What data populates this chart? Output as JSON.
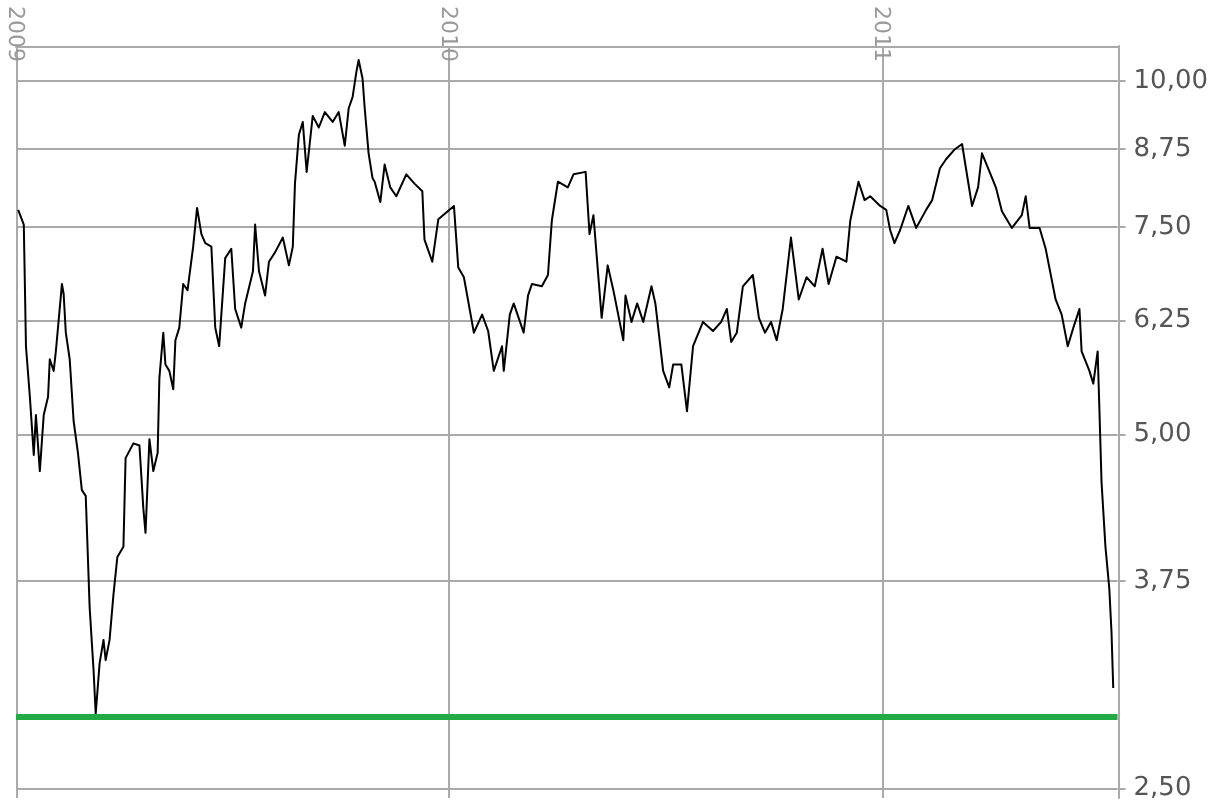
{
  "chart_data": {
    "type": "line",
    "log": "y",
    "grid": true,
    "marker": "none",
    "xlim": [
      2009,
      2011.543
    ],
    "ylim": [
      2.45,
      10.7
    ],
    "xticks": [
      2009,
      2010,
      2011
    ],
    "yticks": [
      {
        "value": 2.5,
        "label": "2,50"
      },
      {
        "value": 3.75,
        "label": "3,75"
      },
      {
        "value": 5,
        "label": "5,00"
      },
      {
        "value": 6.25,
        "label": "6,25"
      },
      {
        "value": 7.5,
        "label": "7,50"
      },
      {
        "value": 8.75,
        "label": "8,75"
      },
      {
        "value": 10,
        "label": "10,00"
      }
    ],
    "ref_lines": [
      {
        "axis": "y",
        "value": 2.87,
        "color": "#22aa44"
      }
    ],
    "x": [
      2009.005,
      2009.018,
      2009.023,
      2009.032,
      2009.041,
      2009.046,
      2009.055,
      2009.064,
      2009.074,
      2009.078,
      2009.087,
      2009.092,
      2009.106,
      2009.11,
      2009.115,
      2009.124,
      2009.133,
      2009.143,
      2009.152,
      2009.161,
      2009.17,
      2009.179,
      2009.184,
      2009.193,
      2009.202,
      2009.207,
      2009.216,
      2009.225,
      2009.234,
      2009.248,
      2009.253,
      2009.271,
      2009.285,
      2009.294,
      2009.299,
      2009.308,
      2009.317,
      2009.327,
      2009.331,
      2009.34,
      2009.345,
      2009.354,
      2009.363,
      2009.368,
      2009.377,
      2009.386,
      2009.396,
      2009.409,
      2009.418,
      2009.428,
      2009.437,
      2009.451,
      2009.46,
      2009.469,
      2009.483,
      2009.497,
      2009.506,
      2009.52,
      2009.529,
      2009.547,
      2009.552,
      2009.561,
      2009.575,
      2009.584,
      2009.598,
      2009.616,
      2009.63,
      2009.639,
      2009.644,
      2009.653,
      2009.662,
      2009.671,
      2009.685,
      2009.699,
      2009.713,
      2009.731,
      2009.745,
      2009.759,
      2009.768,
      2009.777,
      2009.786,
      2009.791,
      2009.8,
      2009.805,
      2009.814,
      2009.823,
      2009.828,
      2009.841,
      2009.851,
      2009.864,
      2009.878,
      2009.901,
      2009.92,
      2009.938,
      2009.943,
      2009.961,
      2009.975,
      2010.011,
      2010.021,
      2010.034,
      2010.057,
      2010.076,
      2010.09,
      2010.103,
      2010.122,
      2010.126,
      2010.14,
      2010.149,
      2010.172,
      2010.182,
      2010.191,
      2010.214,
      2010.228,
      2010.237,
      2010.251,
      2010.274,
      2010.287,
      2010.315,
      2010.324,
      2010.333,
      2010.352,
      2010.366,
      2010.379,
      2010.402,
      2010.407,
      2010.421,
      2010.434,
      2010.448,
      2010.467,
      2010.476,
      2010.494,
      2010.508,
      2010.517,
      2010.536,
      2010.549,
      2010.563,
      2010.586,
      2010.609,
      2010.628,
      2010.641,
      2010.651,
      2010.664,
      2010.678,
      2010.701,
      2010.715,
      2010.729,
      2010.743,
      2010.756,
      2010.77,
      2010.789,
      2010.807,
      2010.825,
      2010.844,
      2010.862,
      2010.876,
      2010.894,
      2010.917,
      2010.926,
      2010.945,
      2010.959,
      2010.972,
      2010.995,
      2011.009,
      2011.018,
      2011.028,
      2011.041,
      2011.06,
      2011.078,
      2011.101,
      2011.115,
      2011.133,
      2011.147,
      2011.166,
      2011.184,
      2011.198,
      2011.207,
      2011.221,
      2011.23,
      2011.244,
      2011.262,
      2011.276,
      2011.299,
      2011.322,
      2011.331,
      2011.34,
      2011.363,
      2011.377,
      2011.4,
      2011.414,
      2011.428,
      2011.441,
      2011.455,
      2011.46,
      2011.478,
      2011.487,
      2011.497,
      2011.501,
      2011.506,
      2011.515,
      2011.524,
      2011.529,
      2011.533
    ],
    "series": [
      {
        "color": "#000000",
        "values": [
          7.76,
          7.54,
          5.94,
          5.38,
          4.8,
          5.19,
          4.65,
          5.19,
          5.38,
          5.79,
          5.66,
          5.88,
          6.71,
          6.58,
          6.1,
          5.79,
          5.13,
          4.82,
          4.48,
          4.43,
          3.56,
          3.15,
          2.89,
          3.19,
          3.34,
          3.21,
          3.34,
          3.65,
          3.93,
          4.01,
          4.77,
          4.91,
          4.89,
          4.32,
          4.12,
          4.95,
          4.65,
          4.82,
          5.58,
          6.1,
          5.73,
          5.66,
          5.46,
          6.01,
          6.16,
          6.71,
          6.63,
          7.22,
          7.79,
          7.4,
          7.27,
          7.22,
          6.16,
          5.94,
          7.06,
          7.19,
          6.39,
          6.16,
          6.46,
          6.88,
          7.54,
          6.88,
          6.56,
          7.01,
          7.14,
          7.35,
          6.96,
          7.22,
          8.17,
          8.99,
          9.22,
          8.36,
          9.33,
          9.12,
          9.4,
          9.22,
          9.4,
          8.8,
          9.47,
          9.68,
          10.18,
          10.41,
          10.04,
          9.47,
          8.67,
          8.26,
          8.2,
          7.88,
          8.48,
          8.11,
          7.97,
          8.32,
          8.17,
          8.05,
          7.32,
          7.01,
          7.62,
          7.82,
          6.93,
          6.8,
          6.1,
          6.32,
          6.12,
          5.66,
          5.94,
          5.66,
          6.32,
          6.46,
          6.1,
          6.56,
          6.71,
          6.68,
          6.83,
          7.6,
          8.2,
          8.11,
          8.32,
          8.36,
          7.4,
          7.68,
          6.28,
          6.96,
          6.63,
          6.01,
          6.56,
          6.23,
          6.46,
          6.23,
          6.68,
          6.46,
          5.66,
          5.48,
          5.73,
          5.73,
          5.23,
          5.94,
          6.23,
          6.12,
          6.23,
          6.39,
          5.99,
          6.1,
          6.68,
          6.83,
          6.28,
          6.1,
          6.23,
          6.01,
          6.39,
          7.35,
          6.51,
          6.8,
          6.68,
          7.19,
          6.71,
          7.08,
          7.01,
          7.6,
          8.2,
          7.91,
          7.97,
          7.82,
          7.76,
          7.46,
          7.27,
          7.46,
          7.82,
          7.49,
          7.76,
          7.91,
          8.42,
          8.57,
          8.73,
          8.83,
          8.2,
          7.82,
          8.11,
          8.67,
          8.42,
          8.11,
          7.74,
          7.49,
          7.68,
          7.97,
          7.49,
          7.49,
          7.19,
          6.51,
          6.32,
          5.94,
          6.16,
          6.39,
          5.88,
          5.66,
          5.52,
          5.88,
          5.26,
          4.55,
          4.01,
          3.69,
          3.39,
          3.04
        ]
      }
    ]
  }
}
